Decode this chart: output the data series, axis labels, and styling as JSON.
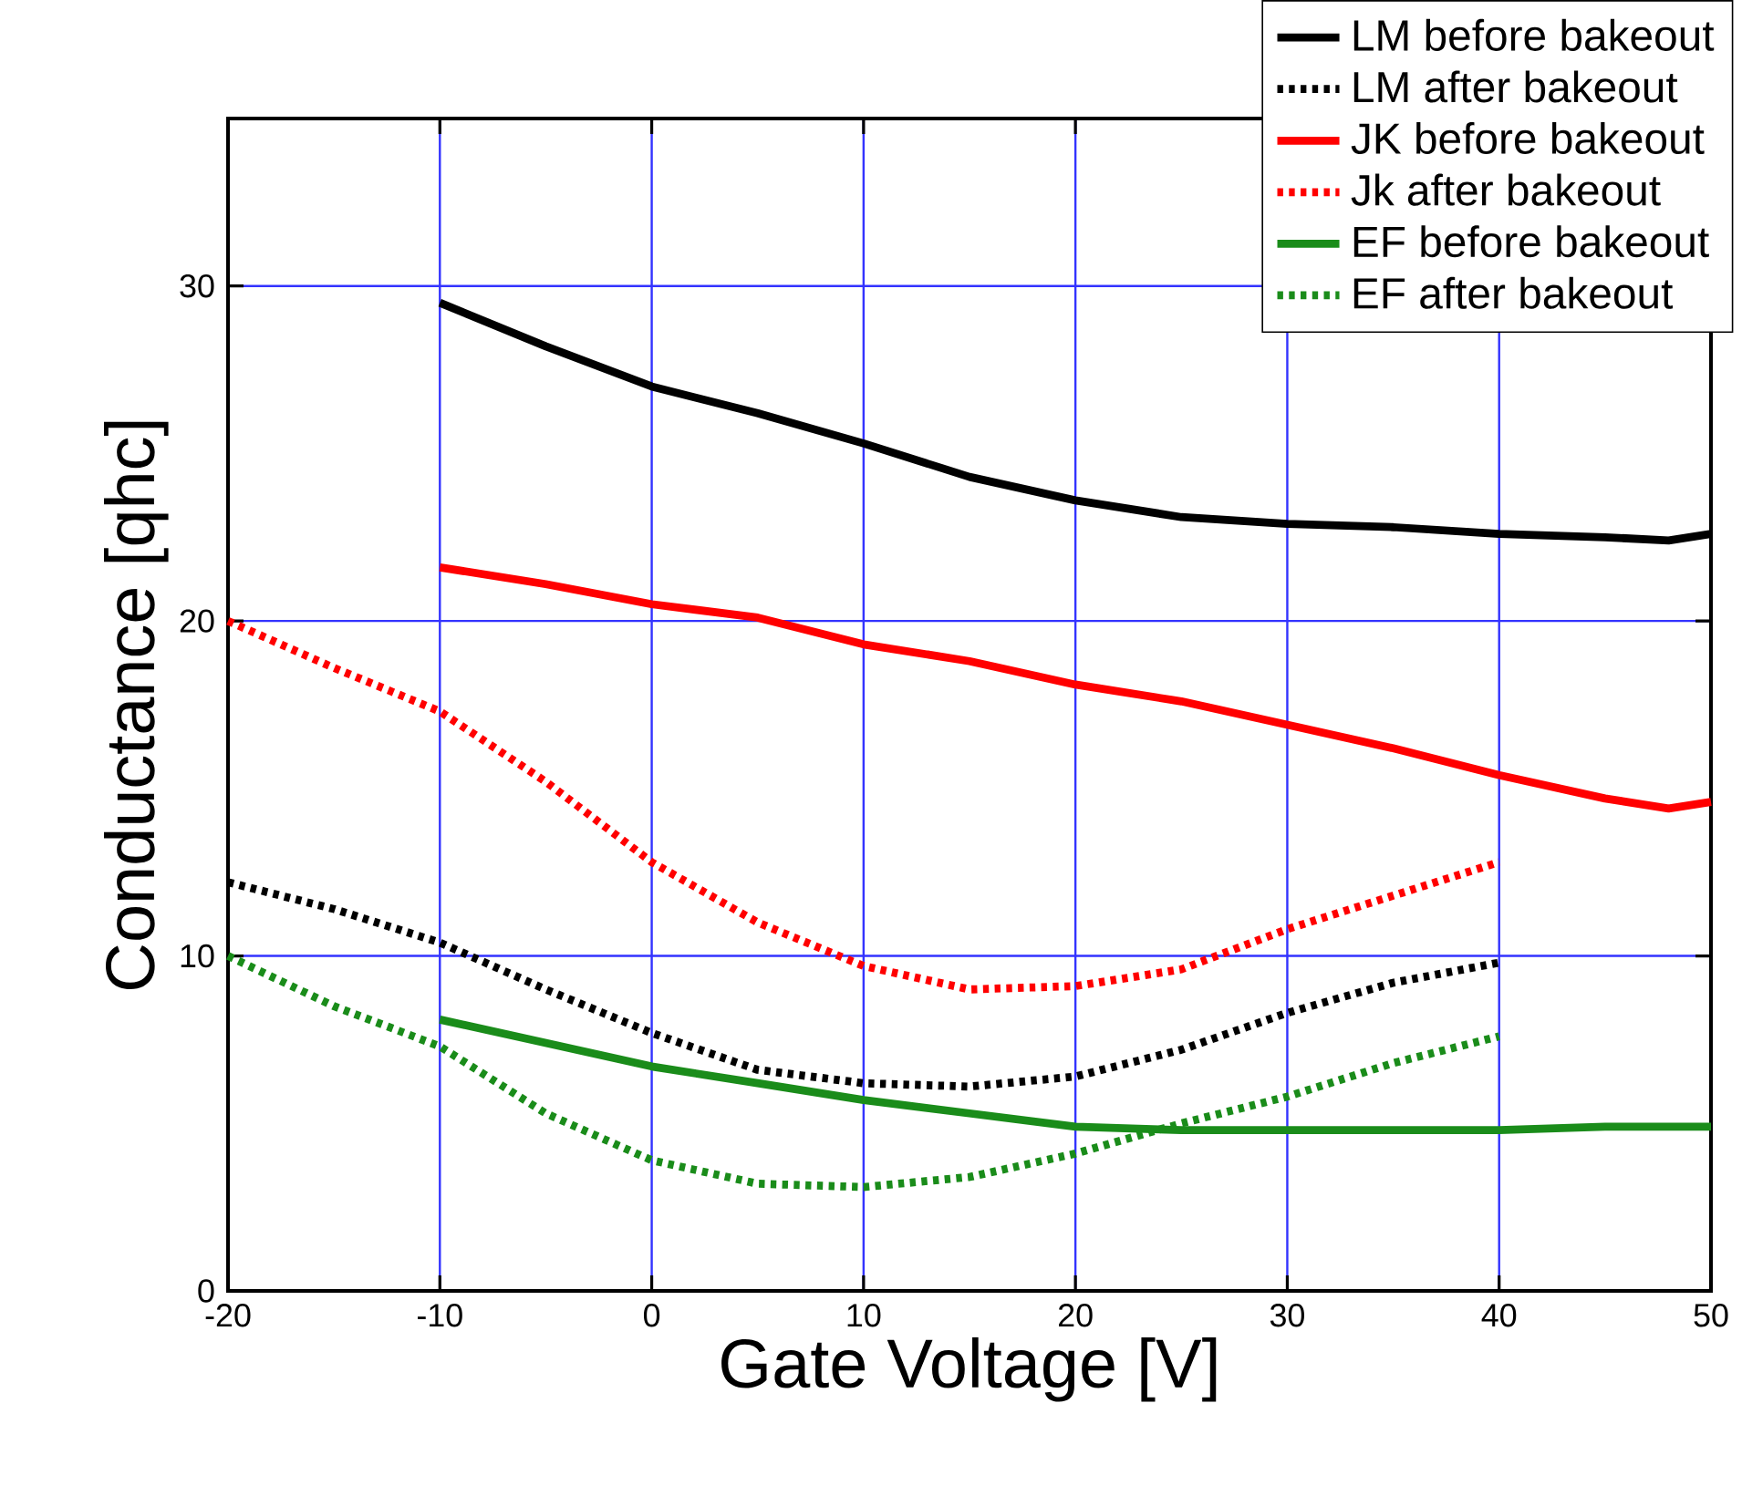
{
  "chart_data": {
    "type": "line",
    "xlabel": "Gate Voltage [V]",
    "ylabel": "Conductance [qhc]",
    "xlim": [
      -20,
      50
    ],
    "ylim": [
      0,
      35
    ],
    "xticks": [
      -20,
      -10,
      0,
      10,
      20,
      30,
      40,
      50
    ],
    "yticks": [
      0,
      10,
      20,
      30
    ],
    "grid": true,
    "legend": "top right",
    "series": [
      {
        "name": "LM before bakeout",
        "color": "#000000",
        "line_style": "solid",
        "x": [
          -10,
          -5,
          0,
          5,
          10,
          15,
          20,
          25,
          30,
          35,
          40,
          45,
          48,
          50
        ],
        "values": [
          29.5,
          28.2,
          27.0,
          26.2,
          25.3,
          24.3,
          23.6,
          23.1,
          22.9,
          22.8,
          22.6,
          22.5,
          22.4,
          22.6
        ]
      },
      {
        "name": "LM after bakeout",
        "color": "#000000",
        "line_style": "dotted",
        "x": [
          -20,
          -15,
          -10,
          -5,
          0,
          5,
          10,
          15,
          20,
          25,
          30,
          35,
          40
        ],
        "values": [
          12.2,
          11.4,
          10.4,
          9.0,
          7.7,
          6.6,
          6.2,
          6.1,
          6.4,
          7.2,
          8.3,
          9.2,
          9.8
        ]
      },
      {
        "name": "JK before bakeout",
        "color": "#ff0000",
        "line_style": "solid",
        "x": [
          -10,
          -5,
          0,
          5,
          10,
          15,
          20,
          25,
          30,
          35,
          40,
          45,
          48,
          50
        ],
        "values": [
          21.6,
          21.1,
          20.5,
          20.1,
          19.3,
          18.8,
          18.1,
          17.6,
          16.9,
          16.2,
          15.4,
          14.7,
          14.4,
          14.6
        ]
      },
      {
        "name": "Jk after bakeout",
        "color": "#ff0000",
        "line_style": "dotted",
        "x": [
          -20,
          -15,
          -10,
          -5,
          0,
          5,
          10,
          15,
          20,
          25,
          30,
          35,
          40
        ],
        "values": [
          20.0,
          18.6,
          17.3,
          15.2,
          12.8,
          11.0,
          9.7,
          9.0,
          9.1,
          9.6,
          10.8,
          11.8,
          12.8
        ]
      },
      {
        "name": "EF before bakeout",
        "color": "#1a8c1a",
        "line_style": "solid",
        "x": [
          -10,
          -5,
          0,
          5,
          10,
          15,
          20,
          25,
          30,
          35,
          40,
          45,
          50
        ],
        "values": [
          8.1,
          7.4,
          6.7,
          6.2,
          5.7,
          5.3,
          4.9,
          4.8,
          4.8,
          4.8,
          4.8,
          4.9,
          4.9
        ]
      },
      {
        "name": "EF after bakeout",
        "color": "#1a8c1a",
        "line_style": "dotted",
        "x": [
          -20,
          -15,
          -10,
          -5,
          0,
          5,
          10,
          15,
          20,
          25,
          30,
          35,
          40
        ],
        "values": [
          10.0,
          8.5,
          7.3,
          5.3,
          3.9,
          3.2,
          3.1,
          3.4,
          4.1,
          5.0,
          5.8,
          6.8,
          7.6
        ]
      }
    ]
  }
}
